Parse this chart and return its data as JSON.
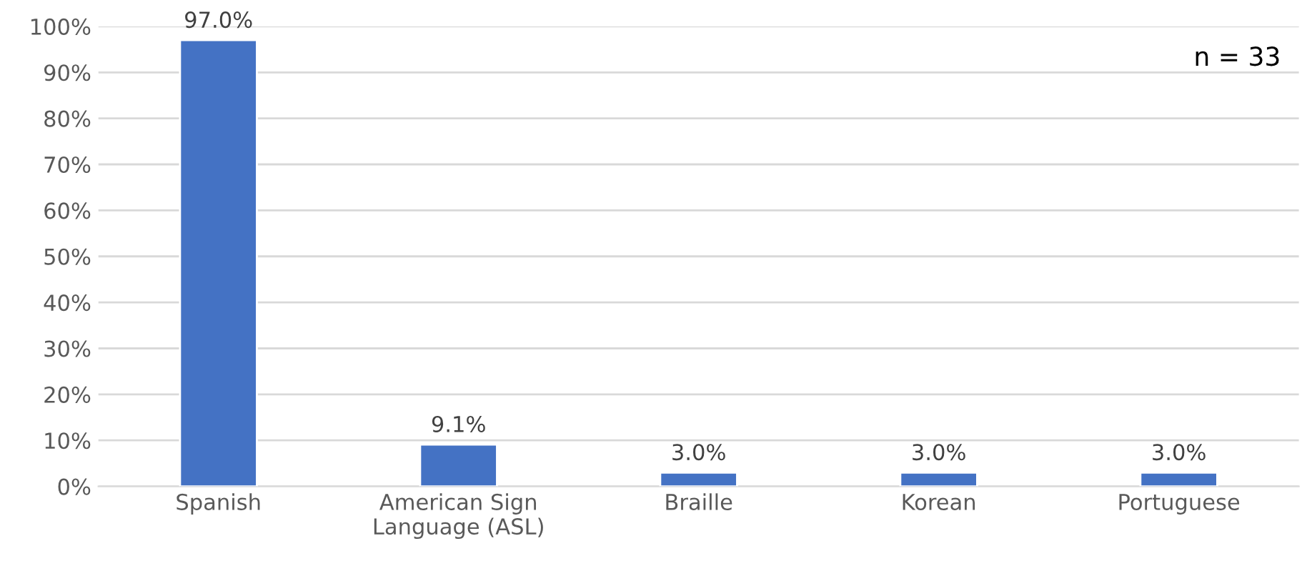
{
  "chart_data": {
    "type": "bar",
    "categories": [
      "Spanish",
      "American Sign\nLanguage (ASL)",
      "Braille",
      "Korean",
      "Portuguese"
    ],
    "values": [
      97.0,
      9.1,
      3.0,
      3.0,
      3.0
    ],
    "value_labels": [
      "97.0%",
      "9.1%",
      "3.0%",
      "3.0%",
      "3.0%"
    ],
    "color": "#4472c4",
    "ylim": [
      0,
      100
    ],
    "yticks": [
      {
        "value": 0,
        "label": "0%"
      },
      {
        "value": 10,
        "label": "10%"
      },
      {
        "value": 20,
        "label": "20%"
      },
      {
        "value": 30,
        "label": "30%"
      },
      {
        "value": 40,
        "label": "40%"
      },
      {
        "value": 50,
        "label": "50%"
      },
      {
        "value": 60,
        "label": "60%"
      },
      {
        "value": 70,
        "label": "70%"
      },
      {
        "value": 80,
        "label": "80%"
      },
      {
        "value": 90,
        "label": "90%"
      },
      {
        "value": 100,
        "label": "100%"
      }
    ],
    "grid": "y",
    "annotations": [
      "n = 33"
    ]
  }
}
